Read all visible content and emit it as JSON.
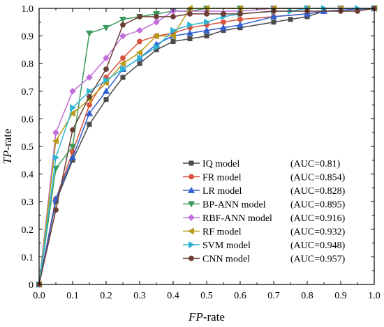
{
  "chart_data": {
    "type": "line",
    "xlabel_italic": "FP",
    "xlabel_rest": "-rate",
    "ylabel_italic": "TP",
    "ylabel_rest": "-rate",
    "xlim": [
      0,
      1
    ],
    "ylim": [
      0,
      1
    ],
    "xticks": [
      "0.0",
      "0.1",
      "0.2",
      "0.3",
      "0.4",
      "0.5",
      "0.6",
      "0.7",
      "0.8",
      "0.9",
      "1.0"
    ],
    "yticks": [
      "0",
      "0.1",
      "0.2",
      "0.3",
      "0.4",
      "0.5",
      "0.6",
      "0.7",
      "0.8",
      "0.9",
      "1.0"
    ],
    "grid": false,
    "legend_position": "bottom-right",
    "series": [
      {
        "name": "IQ model",
        "auc": "(AUC=0.81)",
        "color": "#4a4a4a",
        "marker": "square",
        "x": [
          0,
          0.05,
          0.1,
          0.15,
          0.2,
          0.25,
          0.3,
          0.35,
          0.4,
          0.45,
          0.5,
          0.55,
          0.6,
          0.7,
          0.75,
          0.8,
          0.85,
          1.0
        ],
        "y": [
          0,
          0.3,
          0.45,
          0.58,
          0.67,
          0.75,
          0.8,
          0.85,
          0.88,
          0.89,
          0.9,
          0.92,
          0.93,
          0.95,
          0.96,
          0.97,
          0.99,
          1.0
        ]
      },
      {
        "name": "FR model",
        "auc": "(AUC=0.854)",
        "color": "#d9533c",
        "marker": "circle",
        "x": [
          0,
          0.05,
          0.1,
          0.15,
          0.2,
          0.25,
          0.3,
          0.35,
          0.4,
          0.45,
          0.5,
          0.55,
          0.6,
          0.7,
          0.8,
          0.85,
          1.0
        ],
        "y": [
          0,
          0.31,
          0.48,
          0.65,
          0.75,
          0.82,
          0.88,
          0.9,
          0.91,
          0.93,
          0.94,
          0.95,
          0.96,
          0.97,
          0.98,
          0.99,
          1.0
        ]
      },
      {
        "name": "LR model",
        "auc": "(AUC=0.828)",
        "color": "#2f5fd0",
        "marker": "triangle-up",
        "x": [
          0,
          0.05,
          0.1,
          0.15,
          0.2,
          0.25,
          0.3,
          0.35,
          0.4,
          0.45,
          0.5,
          0.55,
          0.6,
          0.7,
          0.8,
          0.85,
          1.0
        ],
        "y": [
          0,
          0.31,
          0.46,
          0.62,
          0.7,
          0.78,
          0.82,
          0.87,
          0.9,
          0.91,
          0.92,
          0.93,
          0.94,
          0.97,
          0.98,
          0.99,
          1.0
        ]
      },
      {
        "name": "BP-ANN model",
        "auc": "(AUC=0.895)",
        "color": "#3a9a5b",
        "marker": "triangle-down",
        "x": [
          0,
          0.05,
          0.1,
          0.15,
          0.2,
          0.25,
          0.3,
          0.35,
          0.4,
          0.45,
          0.5,
          0.6,
          0.7,
          0.8,
          0.9,
          1.0
        ],
        "y": [
          0,
          0.42,
          0.5,
          0.91,
          0.93,
          0.96,
          0.97,
          0.98,
          0.99,
          0.99,
          1.0,
          1.0,
          1.0,
          1.0,
          1.0,
          1.0
        ]
      },
      {
        "name": "RBF-ANN model",
        "auc": "(AUC=0.916)",
        "color": "#c26ddb",
        "marker": "diamond",
        "x": [
          0,
          0.05,
          0.1,
          0.15,
          0.2,
          0.25,
          0.3,
          0.35,
          0.4,
          0.5,
          0.6,
          0.7,
          0.8,
          0.9,
          1.0
        ],
        "y": [
          0,
          0.55,
          0.7,
          0.75,
          0.82,
          0.9,
          0.92,
          0.95,
          0.99,
          0.99,
          0.99,
          1.0,
          1.0,
          1.0,
          1.0
        ]
      },
      {
        "name": "RF model",
        "auc": "(AUC=0.932)",
        "color": "#b89a16",
        "marker": "triangle-left",
        "x": [
          0,
          0.05,
          0.1,
          0.15,
          0.2,
          0.25,
          0.3,
          0.35,
          0.4,
          0.45,
          0.5,
          0.6,
          0.7,
          0.8,
          0.9,
          1.0
        ],
        "y": [
          0,
          0.52,
          0.62,
          0.67,
          0.73,
          0.8,
          0.84,
          0.9,
          0.9,
          1.0,
          1.0,
          1.0,
          1.0,
          1.0,
          1.0,
          1.0
        ]
      },
      {
        "name": "SVM model",
        "auc": "(AUC=0.948)",
        "color": "#2fb5d3",
        "marker": "triangle-right",
        "x": [
          0,
          0.05,
          0.1,
          0.15,
          0.2,
          0.25,
          0.3,
          0.35,
          0.4,
          0.45,
          0.5,
          0.55,
          0.6,
          0.7,
          0.75,
          0.8,
          0.85,
          0.95,
          1.0
        ],
        "y": [
          0,
          0.46,
          0.64,
          0.7,
          0.74,
          0.78,
          0.82,
          0.86,
          0.92,
          0.94,
          0.95,
          0.97,
          0.98,
          0.99,
          0.99,
          1.0,
          1.0,
          1.0,
          1.0
        ]
      },
      {
        "name": "CNN model",
        "auc": "(AUC=0.957)",
        "color": "#6b3f35",
        "marker": "circle",
        "x": [
          0,
          0.05,
          0.1,
          0.15,
          0.2,
          0.25,
          0.3,
          0.35,
          0.4,
          0.45,
          0.5,
          0.55,
          0.6,
          0.7,
          0.8,
          0.9,
          0.95,
          1.0
        ],
        "y": [
          0,
          0.27,
          0.56,
          0.68,
          0.78,
          0.94,
          0.97,
          0.97,
          0.97,
          0.98,
          0.98,
          0.98,
          0.98,
          0.99,
          0.99,
          0.99,
          0.99,
          1.0
        ]
      }
    ]
  }
}
